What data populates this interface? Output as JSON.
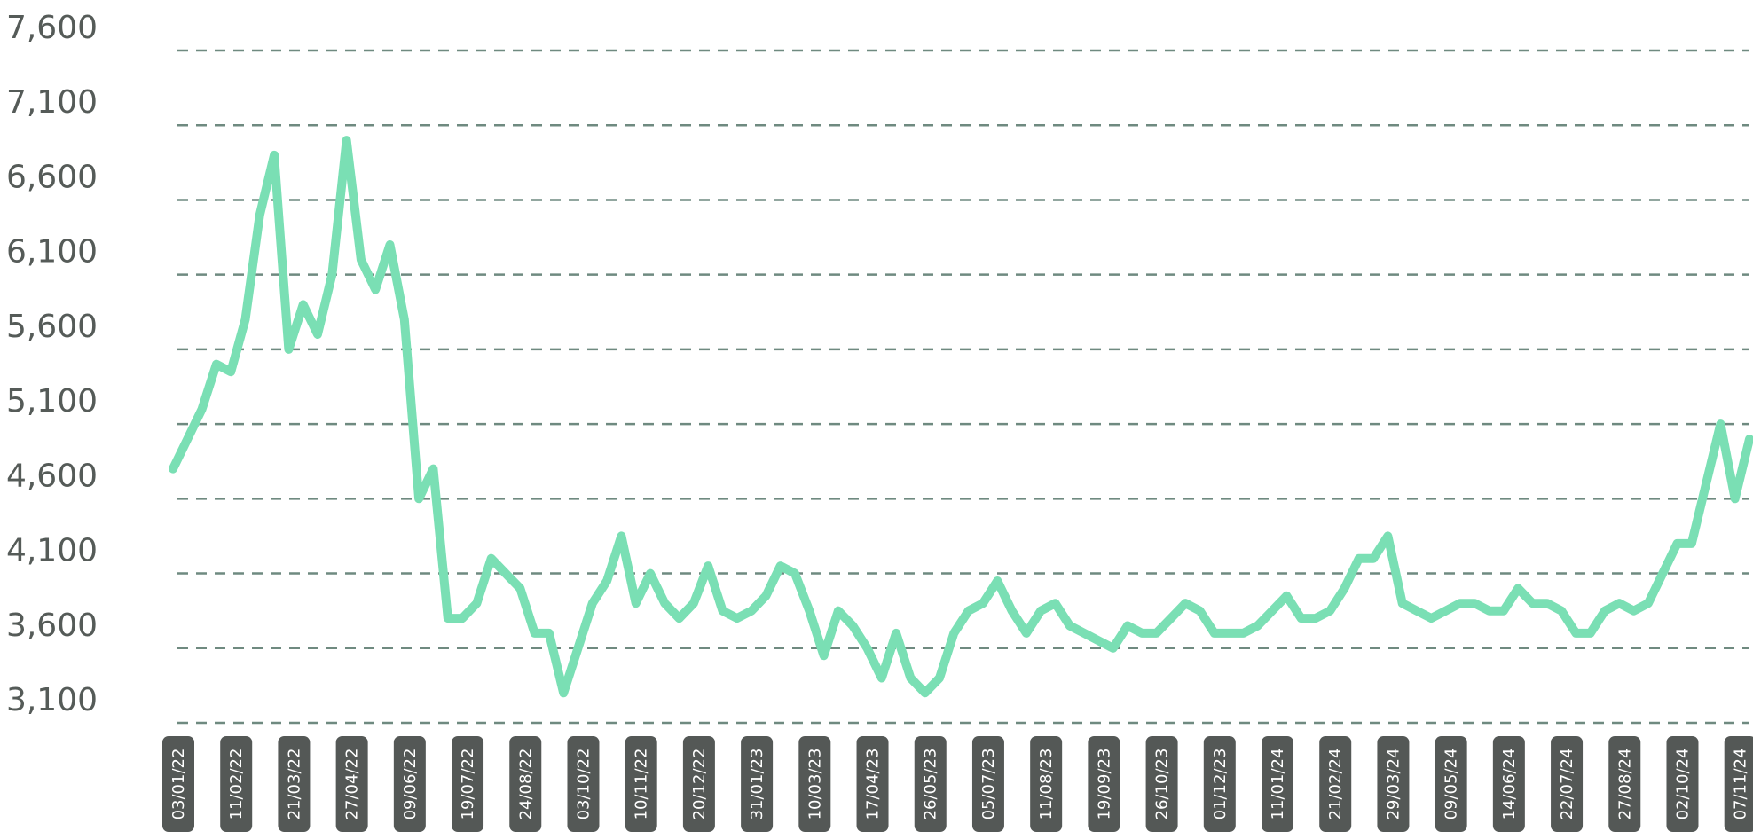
{
  "chart_data": {
    "type": "line",
    "categories": [
      "03/01/22",
      null,
      null,
      null,
      "11/02/22",
      null,
      null,
      null,
      "21/03/22",
      null,
      null,
      null,
      "27/04/22",
      null,
      null,
      null,
      "09/06/22",
      null,
      null,
      null,
      "19/07/22",
      null,
      null,
      null,
      "24/08/22",
      null,
      null,
      null,
      "03/10/22",
      null,
      null,
      null,
      "10/11/22",
      null,
      null,
      null,
      "20/12/22",
      null,
      null,
      null,
      "31/01/23",
      null,
      null,
      null,
      "10/03/23",
      null,
      null,
      null,
      "17/04/23",
      null,
      null,
      null,
      "26/05/23",
      null,
      null,
      null,
      "05/07/23",
      null,
      null,
      null,
      "11/08/23",
      null,
      null,
      null,
      "19/09/23",
      null,
      null,
      null,
      "26/10/23",
      null,
      null,
      null,
      "01/12/23",
      null,
      null,
      null,
      "11/01/24",
      null,
      null,
      null,
      "21/02/24",
      null,
      null,
      null,
      "29/03/24",
      null,
      null,
      null,
      "09/05/24",
      null,
      null,
      null,
      "14/06/24",
      null,
      null,
      null,
      "22/07/24",
      null,
      null,
      null,
      "27/08/24",
      null,
      null,
      null,
      "02/10/24",
      null,
      null,
      null,
      "07/11/24",
      null
    ],
    "values": [
      4800,
      5000,
      5200,
      5500,
      5450,
      5800,
      6500,
      6900,
      5600,
      5900,
      5700,
      6100,
      7000,
      6200,
      6000,
      6300,
      5800,
      4600,
      4800,
      3800,
      3800,
      3900,
      4200,
      4100,
      4000,
      3700,
      3700,
      3300,
      3600,
      3900,
      4050,
      4350,
      3900,
      4100,
      3900,
      3800,
      3900,
      4150,
      3850,
      3800,
      3850,
      3950,
      4150,
      4100,
      3850,
      3550,
      3850,
      3750,
      3600,
      3400,
      3700,
      3400,
      3300,
      3400,
      3700,
      3850,
      3900,
      4050,
      3850,
      3700,
      3850,
      3900,
      3750,
      3700,
      3650,
      3600,
      3750,
      3700,
      3700,
      3800,
      3900,
      3850,
      3700,
      3700,
      3700,
      3750,
      3850,
      3950,
      3800,
      3800,
      3850,
      4000,
      4200,
      4200,
      4350,
      3900,
      3850,
      3800,
      3850,
      3900,
      3900,
      3850,
      3850,
      4000,
      3900,
      3900,
      3850,
      3700,
      3700,
      3850,
      3900,
      3850,
      3900,
      4100,
      4300,
      4300,
      4700,
      5100,
      4600,
      5000
    ],
    "color": "#7adfb4",
    "ylim": [
      3100,
      7600
    ],
    "yticks": [
      {
        "value": 3100,
        "label": "3,100"
      },
      {
        "value": 3600,
        "label": "3,600"
      },
      {
        "value": 4100,
        "label": "4,100"
      },
      {
        "value": 4600,
        "label": "4,600"
      },
      {
        "value": 5100,
        "label": "5,100"
      },
      {
        "value": 5600,
        "label": "5,600"
      },
      {
        "value": 6100,
        "label": "6,100"
      },
      {
        "value": 6600,
        "label": "6,600"
      },
      {
        "value": 7100,
        "label": "7,100"
      },
      {
        "value": 7600,
        "label": "7,600"
      }
    ],
    "grid": true
  }
}
